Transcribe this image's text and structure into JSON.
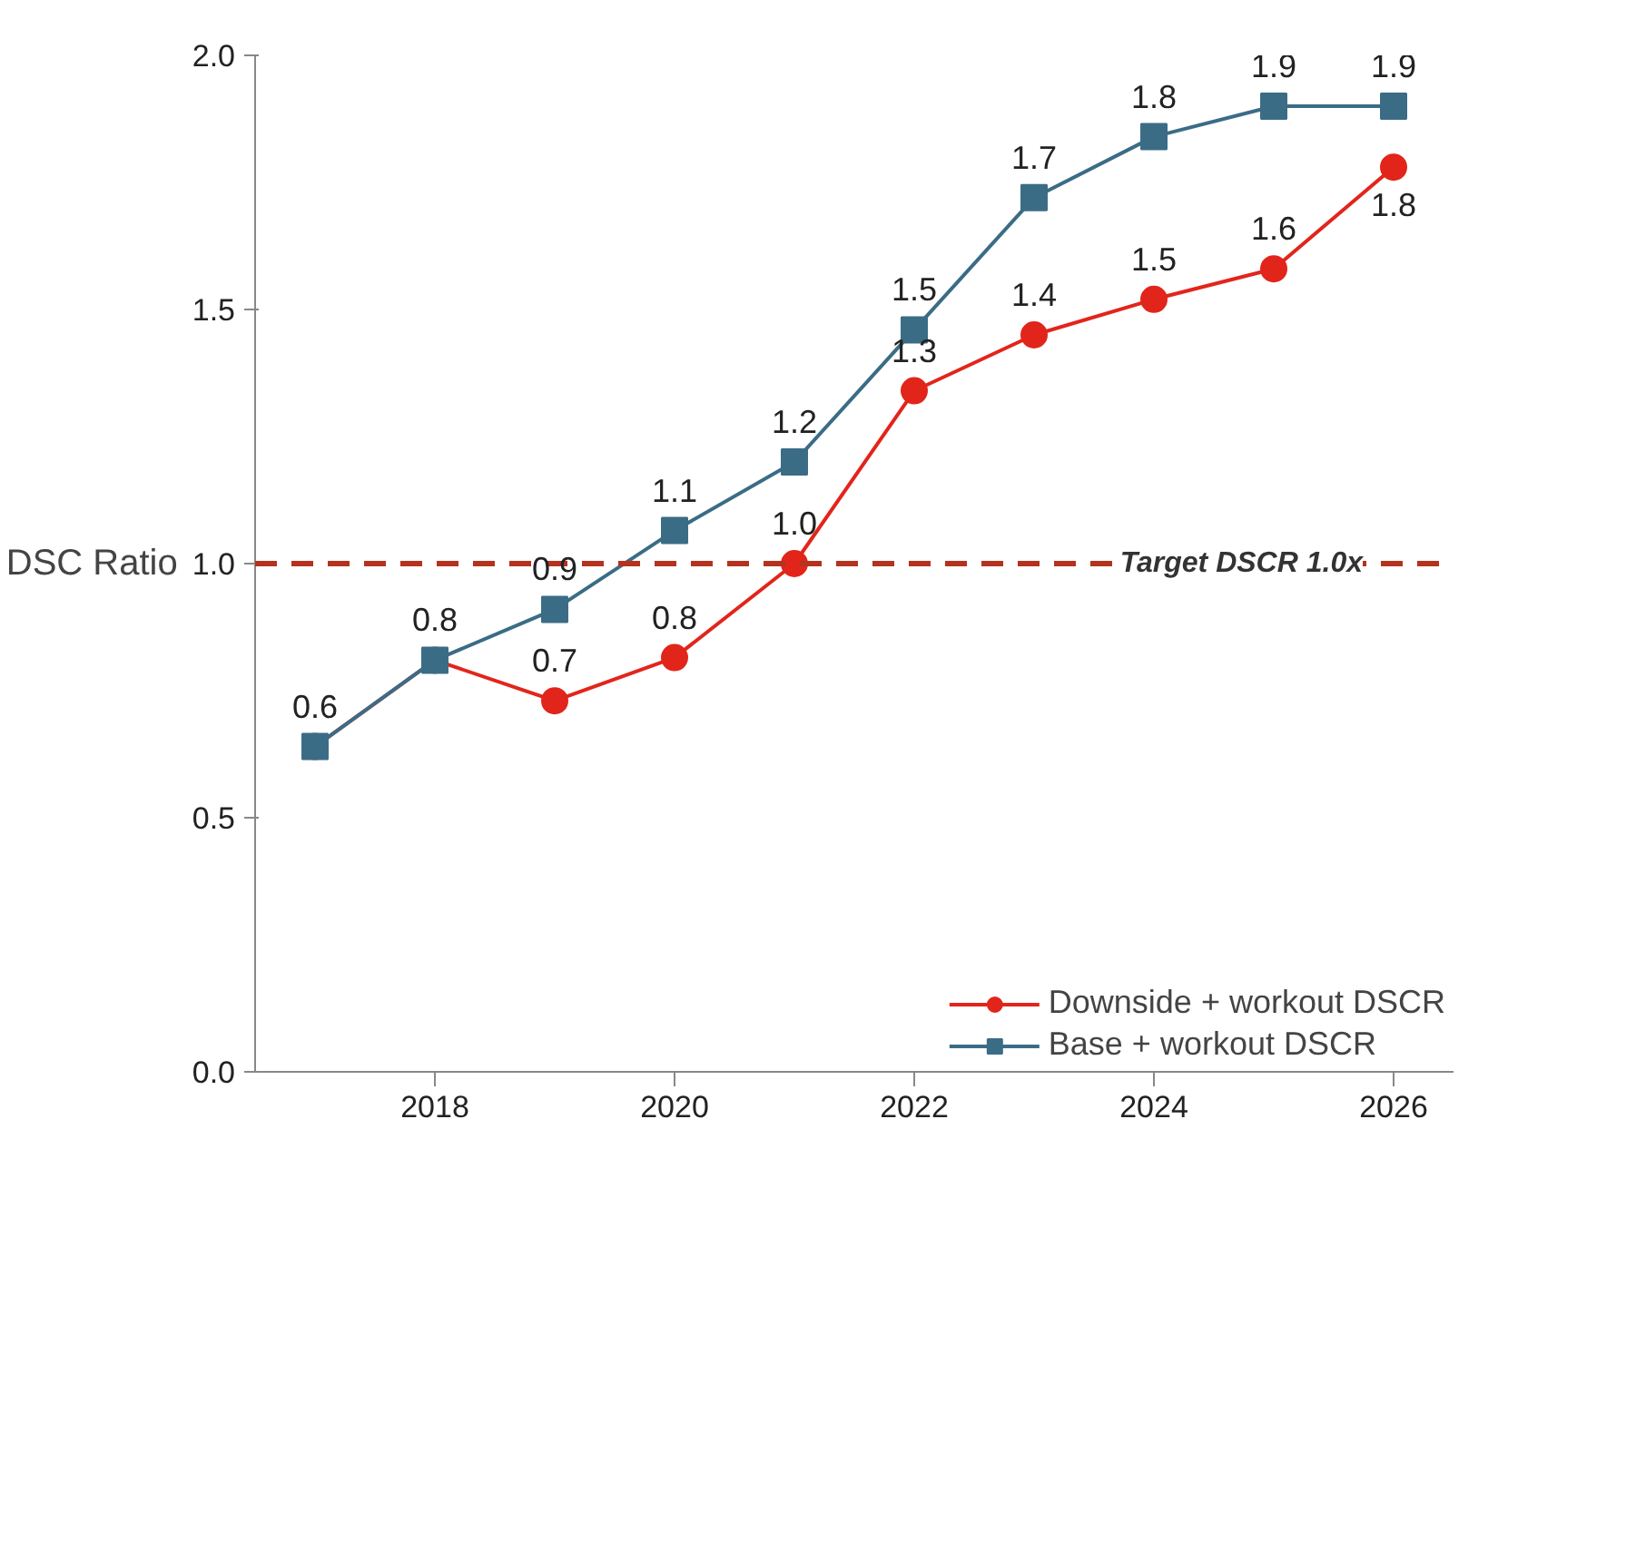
{
  "chart_data": {
    "type": "line",
    "ylabel": "DSC Ratio",
    "x": [
      2017,
      2018,
      2019,
      2020,
      2021,
      2022,
      2023,
      2024,
      2025,
      2026
    ],
    "xlim": [
      2016.5,
      2026.5
    ],
    "xticks": [
      2018,
      2020,
      2022,
      2024,
      2026
    ],
    "ylim": [
      0,
      2.0
    ],
    "yticks": [
      {
        "value": 0,
        "label": "0.0"
      },
      0.5,
      {
        "value": 1,
        "label": "1.0"
      },
      1.5,
      {
        "value": 2,
        "label": "2.0"
      }
    ],
    "series": [
      {
        "name": "Downside + workout DSCR",
        "color": "#e2251b",
        "marker": "circle",
        "values": [
          0.64,
          0.81,
          0.73,
          0.815,
          1.0,
          1.34,
          1.45,
          1.52,
          1.58,
          1.78
        ],
        "value_labels": [
          null,
          null,
          "0.7",
          "0.8",
          "1.0",
          "1.3",
          "1.4",
          "1.5",
          "1.6",
          "1.8"
        ]
      },
      {
        "name": "Base + workout DSCR",
        "color": "#3b6c86",
        "marker": "square",
        "values": [
          0.64,
          0.81,
          0.91,
          1.065,
          1.2,
          1.46,
          1.72,
          1.84,
          1.9,
          1.9
        ],
        "value_labels": [
          "0.6",
          "0.8",
          "0.9",
          "1.1",
          "1.2",
          "1.5",
          "1.7",
          "1.8",
          "1.9",
          "1.9"
        ]
      }
    ],
    "ref_lines": [
      {
        "axis": "y",
        "value": 1.0,
        "label": "Target DSCR 1.0x",
        "color": "#b5321f",
        "line_style": "dashed"
      }
    ],
    "grid": false,
    "legend": "bottom right",
    "line_style": "solid"
  }
}
